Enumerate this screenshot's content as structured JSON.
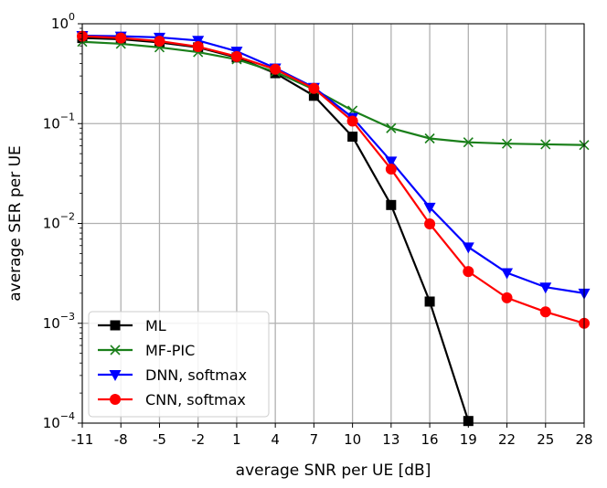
{
  "chart_data": {
    "type": "line",
    "title": "",
    "xlabel": "average SNR per UE [dB]",
    "ylabel": "average SER per UE",
    "yscale": "log",
    "grid": true,
    "legend_position": "lower-left",
    "x": [
      -11,
      -8,
      -5,
      -2,
      1,
      4,
      7,
      10,
      13,
      16,
      19,
      22,
      25,
      28
    ],
    "xticks": [
      "-11",
      "-8",
      "-5",
      "-2",
      "1",
      "4",
      "7",
      "10",
      "13",
      "16",
      "19",
      "22",
      "25",
      "28"
    ],
    "ylim": [
      0.0001,
      1
    ],
    "yticks": [
      {
        "base": "10",
        "exp": "−4"
      },
      {
        "base": "10",
        "exp": "−3"
      },
      {
        "base": "10",
        "exp": "−2"
      },
      {
        "base": "10",
        "exp": "−1"
      },
      {
        "base": "10",
        "exp": "0"
      }
    ],
    "series": [
      {
        "name": "ML",
        "color": "#000000",
        "marker": "square",
        "x": [
          -11,
          -8,
          -5,
          -2,
          1,
          4,
          7,
          10,
          13,
          16,
          19
        ],
        "values": [
          0.72,
          0.7,
          0.65,
          0.58,
          0.46,
          0.32,
          0.19,
          0.074,
          0.0153,
          0.00165,
          0.000105
        ]
      },
      {
        "name": "MF-PIC",
        "color": "#1a7f1a",
        "marker": "x",
        "x": [
          -11,
          -8,
          -5,
          -2,
          1,
          4,
          7,
          10,
          13,
          16,
          19,
          22,
          25,
          28
        ],
        "values": [
          0.66,
          0.63,
          0.58,
          0.52,
          0.44,
          0.33,
          0.22,
          0.135,
          0.09,
          0.071,
          0.065,
          0.063,
          0.062,
          0.061
        ]
      },
      {
        "name": "DNN, softmax",
        "color": "#0000ff",
        "marker": "triangle-down",
        "x": [
          -11,
          -8,
          -5,
          -2,
          1,
          4,
          7,
          10,
          13,
          16,
          19,
          22,
          25,
          28
        ],
        "values": [
          0.76,
          0.75,
          0.73,
          0.68,
          0.53,
          0.36,
          0.23,
          0.115,
          0.042,
          0.0145,
          0.0058,
          0.0032,
          0.0023,
          0.002
        ]
      },
      {
        "name": "CNN, softmax",
        "color": "#ff0000",
        "marker": "circle",
        "x": [
          -11,
          -8,
          -5,
          -2,
          1,
          4,
          7,
          10,
          13,
          16,
          19,
          22,
          25,
          28
        ],
        "values": [
          0.75,
          0.72,
          0.67,
          0.59,
          0.47,
          0.35,
          0.225,
          0.106,
          0.035,
          0.0099,
          0.0033,
          0.0018,
          0.0013,
          0.001
        ]
      }
    ]
  }
}
